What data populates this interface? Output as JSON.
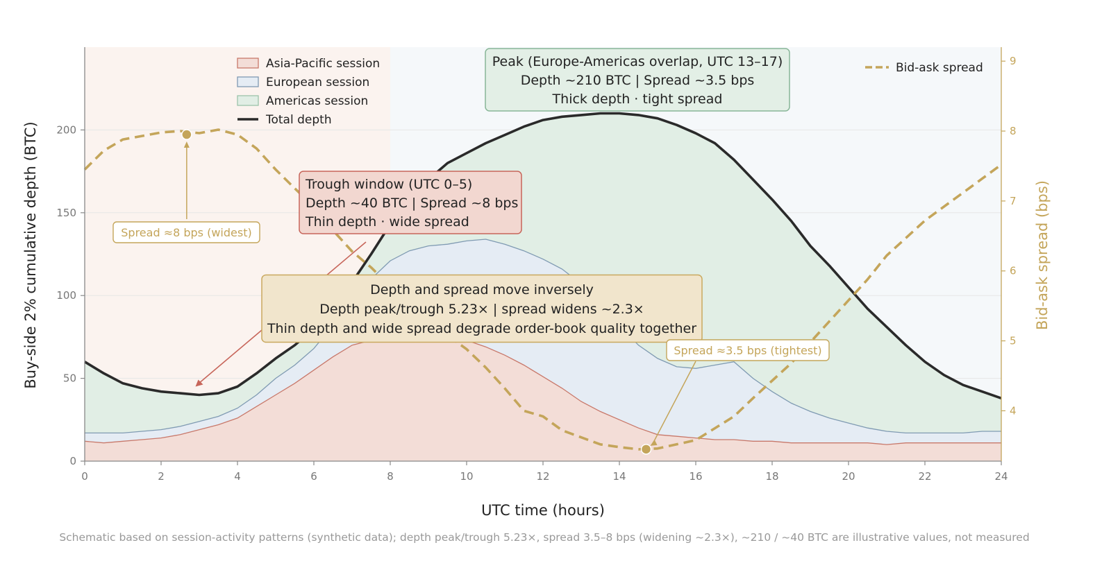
{
  "chart_data": {
    "type": "area",
    "xlabel": "UTC time (hours)",
    "ylabel": "Buy-side 2% cumulative depth (BTC)",
    "y2label": "Bid-ask spread (bps)",
    "xlim": [
      0,
      24
    ],
    "ylim": [
      0,
      250
    ],
    "y2lim": [
      3.28,
      9.2
    ],
    "xticks": [
      0,
      2,
      4,
      6,
      8,
      10,
      12,
      14,
      16,
      18,
      20,
      22,
      24
    ],
    "yticks": [
      0,
      50,
      100,
      150,
      200
    ],
    "y2ticks": [
      4,
      5,
      6,
      7,
      8,
      9
    ],
    "grid": "horizontal",
    "background_bands": [
      {
        "x0": 0,
        "x1": 8,
        "color": "#fbf3ef"
      },
      {
        "x0": 8,
        "x1": 24,
        "color": "#f5f8fa"
      }
    ],
    "x": [
      0,
      0.5,
      1,
      1.5,
      2,
      2.5,
      3,
      3.5,
      4,
      4.5,
      5,
      5.5,
      6,
      6.5,
      7,
      7.5,
      8,
      8.5,
      9,
      9.5,
      10,
      10.5,
      11,
      11.5,
      12,
      12.5,
      13,
      13.5,
      14,
      14.5,
      15,
      15.5,
      16,
      16.5,
      17,
      17.5,
      18,
      18.5,
      19,
      19.5,
      20,
      20.5,
      21,
      21.5,
      22,
      22.5,
      23,
      23.5,
      24
    ],
    "series": [
      {
        "name": "Asia-Pacific session",
        "stack": "cumulative",
        "fill": "#f3ddd7",
        "line": "#c8786a",
        "values": [
          12,
          11,
          12,
          13,
          14,
          16,
          19,
          22,
          26,
          33,
          40,
          47,
          55,
          63,
          70,
          73,
          75,
          76,
          76,
          75,
          73,
          69,
          64,
          58,
          51,
          44,
          36,
          30,
          25,
          20,
          16,
          15,
          14,
          13,
          13,
          12,
          12,
          11,
          11,
          11,
          11,
          11,
          10,
          11,
          11,
          11,
          11,
          11,
          11
        ]
      },
      {
        "name": "European session",
        "stack": "cumulative",
        "fill": "#e5ecf4",
        "line": "#7f9ab2",
        "values": [
          17,
          17,
          17,
          18,
          19,
          21,
          24,
          27,
          32,
          40,
          50,
          58,
          68,
          82,
          95,
          110,
          121,
          127,
          130,
          131,
          133,
          134,
          131,
          127,
          122,
          116,
          107,
          95,
          82,
          70,
          62,
          57,
          56,
          58,
          60,
          50,
          42,
          35,
          30,
          26,
          23,
          20,
          18,
          17,
          17,
          17,
          17,
          18,
          18
        ]
      },
      {
        "name": "Americas session",
        "stack": "cumulative",
        "fill": "#e1eee5",
        "line": "#9cc4aa",
        "values": [
          60,
          53,
          47,
          44,
          42,
          41,
          40,
          41,
          45,
          53,
          62,
          70,
          80,
          93,
          108,
          125,
          143,
          158,
          170,
          180,
          186,
          192,
          197,
          202,
          206,
          208,
          209,
          210,
          210,
          209,
          207,
          203,
          198,
          192,
          182,
          170,
          158,
          145,
          130,
          118,
          105,
          92,
          81,
          70,
          60,
          52,
          46,
          42,
          38
        ]
      },
      {
        "name": "Total depth",
        "role": "line",
        "color": "#2a2a2a",
        "values": [
          60,
          53,
          47,
          44,
          42,
          41,
          40,
          41,
          45,
          53,
          62,
          70,
          80,
          93,
          108,
          125,
          143,
          158,
          170,
          180,
          186,
          192,
          197,
          202,
          206,
          208,
          209,
          210,
          210,
          209,
          207,
          203,
          198,
          192,
          182,
          170,
          158,
          145,
          130,
          118,
          105,
          92,
          81,
          70,
          60,
          52,
          46,
          42,
          38
        ]
      },
      {
        "name": "Bid-ask spread",
        "axis": "right",
        "style": "dashed",
        "color": "#c4a55a",
        "values": [
          7.45,
          7.72,
          7.88,
          7.93,
          7.98,
          8.0,
          7.97,
          8.02,
          7.95,
          7.75,
          7.45,
          7.18,
          6.92,
          6.58,
          6.28,
          6.05,
          5.78,
          5.55,
          5.32,
          5.08,
          4.88,
          4.62,
          4.32,
          4.0,
          3.92,
          3.72,
          3.62,
          3.52,
          3.48,
          3.45,
          3.46,
          3.52,
          3.58,
          3.75,
          3.92,
          4.18,
          4.43,
          4.68,
          4.98,
          5.28,
          5.58,
          5.88,
          6.22,
          6.47,
          6.72,
          6.92,
          7.12,
          7.32,
          7.52
        ]
      }
    ],
    "legend": {
      "placement": "top-left",
      "items": [
        {
          "label": "Asia-Pacific session",
          "kind": "patch",
          "fill": "#f3ddd7",
          "edge": "#c8786a"
        },
        {
          "label": "European session",
          "kind": "patch",
          "fill": "#e5ecf4",
          "edge": "#7f9ab2"
        },
        {
          "label": "Americas session",
          "kind": "patch",
          "fill": "#e1eee5",
          "edge": "#9cc4aa"
        },
        {
          "label": "Total depth",
          "kind": "line",
          "color": "#2a2a2a"
        }
      ]
    },
    "legend_right": {
      "placement": "top-right",
      "label": "Bid-ask spread",
      "color": "#c4a55a"
    },
    "annotations": {
      "peak_box": {
        "lines": [
          "Peak (Europe-Americas overlap, UTC 13–17)",
          "Depth ~210 BTC | Spread ~3.5 bps",
          "Thick depth · tight spread"
        ],
        "fill": "#e3efe6",
        "edge": "#88b697"
      },
      "trough_box": {
        "lines": [
          "Trough window (UTC 0–5)",
          "Depth ~40 BTC | Spread ~8 bps",
          "Thin depth · wide spread"
        ],
        "fill": "#f2d7d0",
        "edge": "#c7655a",
        "arrow_to": {
          "x": 2.9,
          "y": 40
        }
      },
      "center_box": {
        "lines": [
          "Depth and spread move inversely",
          "Depth peak/trough 5.23× | spread widens ~2.3×",
          "Thin depth and wide spread degrade order-book quality together"
        ],
        "fill": "#f1e5cc",
        "edge": "#c9a85e"
      },
      "widest_marker": {
        "label": "Spread ≈8 bps (widest)",
        "x": 2.67,
        "y2": 7.95
      },
      "tightest_marker": {
        "label": "Spread ≈3.5 bps (tightest)",
        "x": 14.7,
        "y2": 3.45
      }
    }
  },
  "footnote": "Schematic based on session-activity patterns (synthetic data); depth peak/trough 5.23×, spread 3.5–8 bps (widening ~2.3×), ~210 / ~40 BTC are illustrative values, not measured"
}
